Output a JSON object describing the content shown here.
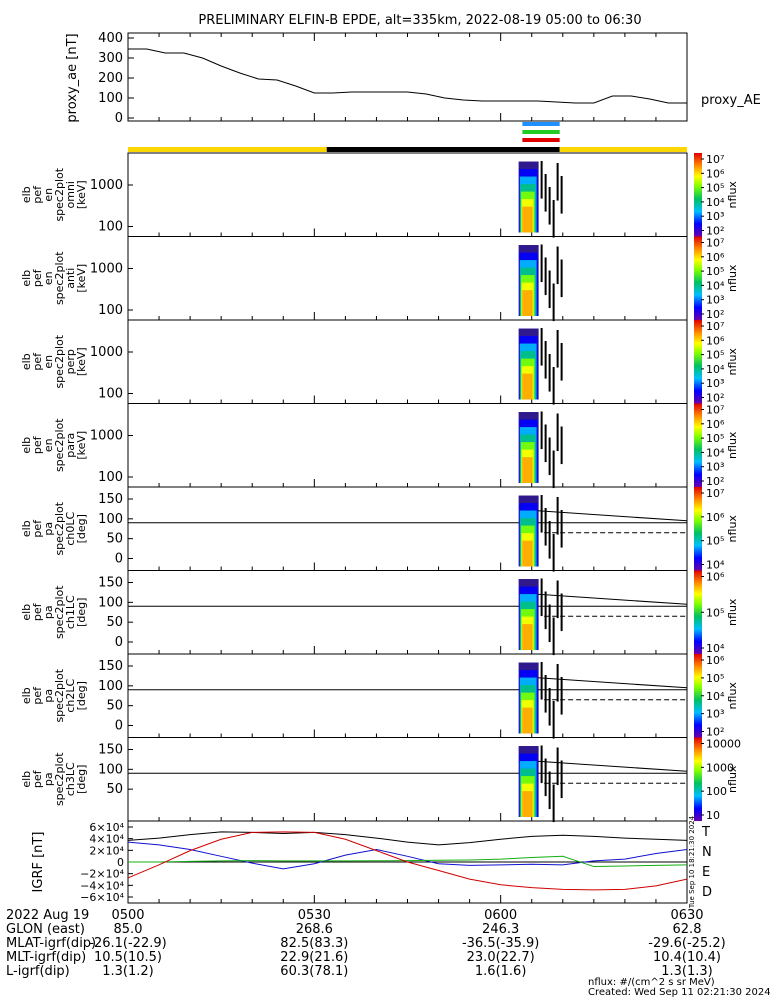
{
  "title": "PRELIMINARY ELFIN-B EPDE, alt=335km, 2022-08-19 05:00 to 06:30",
  "colors": {
    "ae_line": "#000000",
    "bar_yellow": "#ffd700",
    "bar_black": "#000000",
    "bar_blue": "#1e90ff",
    "bar_green": "#22cc22",
    "bar_red": "#e00000",
    "T": "#000000",
    "N": "#1010d0",
    "E": "#10b010",
    "D": "#d00000"
  },
  "chart_data": [
    {
      "type": "line",
      "ylabel": "proxy_ae [nT]",
      "legend": "proxy_AE",
      "ylim": [
        0,
        420
      ],
      "yticks": [
        0,
        100,
        200,
        300,
        400
      ],
      "x": [
        0,
        3,
        6,
        9,
        12,
        15,
        18,
        21,
        24,
        27,
        30,
        33,
        36,
        39,
        42,
        45,
        48,
        51,
        54,
        57,
        60,
        63,
        66,
        69,
        72,
        75,
        78,
        81,
        84,
        87,
        90
      ],
      "values": [
        345,
        345,
        325,
        325,
        300,
        260,
        225,
        195,
        190,
        160,
        125,
        125,
        130,
        130,
        130,
        130,
        120,
        100,
        90,
        85,
        85,
        85,
        85,
        80,
        75,
        75,
        110,
        110,
        95,
        75,
        75
      ]
    },
    {
      "type": "heatmap",
      "panels": [
        {
          "ylabel": [
            "elb",
            "pef",
            "en",
            "spec2plot",
            "omni",
            "[keV]"
          ],
          "yticks": [
            "1000",
            "100"
          ],
          "cbar": [
            "10⁷",
            "10⁶",
            "10⁵",
            "10⁴",
            "10³",
            "10²"
          ],
          "cbar_label": "nflux"
        },
        {
          "ylabel": [
            "elb",
            "pef",
            "en",
            "spec2plot",
            "anti",
            "[keV]"
          ],
          "yticks": [
            "1000",
            "100"
          ],
          "cbar": [
            "10⁷",
            "10⁶",
            "10⁵",
            "10⁴",
            "10³",
            "10²"
          ],
          "cbar_label": "nflux"
        },
        {
          "ylabel": [
            "elb",
            "pef",
            "en",
            "spec2plot",
            "perp",
            "[keV]"
          ],
          "yticks": [
            "1000",
            "100"
          ],
          "cbar": [
            "10⁷",
            "10⁶",
            "10⁵",
            "10⁴",
            "10³",
            "10²"
          ],
          "cbar_label": "nflux"
        },
        {
          "ylabel": [
            "elb",
            "pef",
            "en",
            "spec2plot",
            "para",
            "[keV]"
          ],
          "yticks": [
            "1000",
            "100"
          ],
          "cbar": [
            "10⁷",
            "10⁶",
            "10⁵",
            "10⁴",
            "10³",
            "10²"
          ],
          "cbar_label": "nflux"
        },
        {
          "ylabel": [
            "elb",
            "pef",
            "pa",
            "spec2plot",
            "ch0LC",
            "[deg]"
          ],
          "yticks": [
            "150",
            "100",
            "50",
            "0"
          ],
          "cbar": [
            "10⁷",
            "10⁶",
            "10⁵",
            "10⁴"
          ],
          "cbar_label": "nflux"
        },
        {
          "ylabel": [
            "elb",
            "pef",
            "pa",
            "spec2plot",
            "ch1LC",
            "[deg]"
          ],
          "yticks": [
            "150",
            "100",
            "50",
            "0"
          ],
          "cbar": [
            "10⁶",
            "10⁵",
            "10⁴"
          ],
          "cbar_label": "nflux"
        },
        {
          "ylabel": [
            "elb",
            "pef",
            "pa",
            "spec2plot",
            "ch2LC",
            "[deg]"
          ],
          "yticks": [
            "150",
            "100",
            "50",
            "0"
          ],
          "cbar": [
            "10⁶",
            "10⁵",
            "10⁴",
            "10³",
            "10²"
          ],
          "cbar_label": "nflux"
        },
        {
          "ylabel": [
            "elb",
            "pef",
            "pa",
            "spec2plot",
            "ch3LC",
            "[deg]"
          ],
          "yticks": [
            "150",
            "100",
            "50"
          ],
          "cbar": [
            "10000",
            "1000",
            "100",
            "10"
          ],
          "cbar_label": "nflux"
        }
      ]
    },
    {
      "type": "line",
      "ylabel": "IGRF [nT]",
      "ylim": [
        -65000,
        65000
      ],
      "yticks": [
        "6×10⁴",
        "4×10⁴",
        "2×10⁴",
        "0",
        "−2×10⁴",
        "−4×10⁴",
        "−6×10⁴"
      ],
      "legend": [
        "T",
        "N",
        "E",
        "D"
      ],
      "x": [
        0,
        5,
        10,
        15,
        20,
        25,
        30,
        35,
        40,
        45,
        50,
        55,
        60,
        65,
        70,
        75,
        80,
        85,
        90
      ],
      "series": [
        {
          "name": "T",
          "values": [
            38000,
            42000,
            48000,
            53000,
            52000,
            50000,
            52000,
            48000,
            42000,
            35000,
            30000,
            34000,
            40000,
            45000,
            47000,
            45000,
            42000,
            40000,
            38000
          ]
        },
        {
          "name": "N",
          "values": [
            35000,
            30000,
            22000,
            10000,
            -2000,
            -12000,
            -3000,
            12000,
            22000,
            10000,
            -3000,
            -6000,
            -5000,
            -4000,
            -5000,
            2000,
            5000,
            15000,
            22000
          ]
        },
        {
          "name": "E",
          "values": [
            0,
            0,
            1000,
            2000,
            2500,
            2000,
            2000,
            2000,
            2200,
            2500,
            3000,
            3500,
            5000,
            8000,
            10000,
            -8000,
            -7000,
            -6000,
            -5000
          ]
        },
        {
          "name": "D",
          "values": [
            -28000,
            -5000,
            20000,
            40000,
            52000,
            53000,
            52000,
            40000,
            20000,
            0,
            -15000,
            -30000,
            -40000,
            -45000,
            -48000,
            -49000,
            -48000,
            -42000,
            -30000
          ]
        }
      ]
    }
  ],
  "footer": {
    "rows": [
      {
        "label": "2022 Aug 19",
        "values": [
          "0500",
          "0530",
          "0600",
          "0630"
        ]
      },
      {
        "label": "GLON (east)",
        "values": [
          "85.0",
          "268.6",
          "246.3",
          "62.8"
        ]
      },
      {
        "label": "MLAT-igrf(dip)",
        "values": [
          "-26.1(-22.9)",
          "82.5(83.3)",
          "-36.5(-35.9)",
          "-29.6(-25.2)"
        ]
      },
      {
        "label": "MLT-igrf(dip)",
        "values": [
          "10.5(10.5)",
          "22.9(21.6)",
          "23.0(22.7)",
          "10.4(10.4)"
        ]
      },
      {
        "label": "L-igrf(dip)",
        "values": [
          "1.3(1.2)",
          "60.3(78.1)",
          "1.6(1.6)",
          "1.3(1.3)"
        ]
      }
    ],
    "units": "nflux: #/(cm^2 s sr MeV)",
    "created": "Created: Wed Sep 11 02:21:30 2024",
    "vertical_stamp": "Tue Sep 10 18:21:30 2024"
  }
}
